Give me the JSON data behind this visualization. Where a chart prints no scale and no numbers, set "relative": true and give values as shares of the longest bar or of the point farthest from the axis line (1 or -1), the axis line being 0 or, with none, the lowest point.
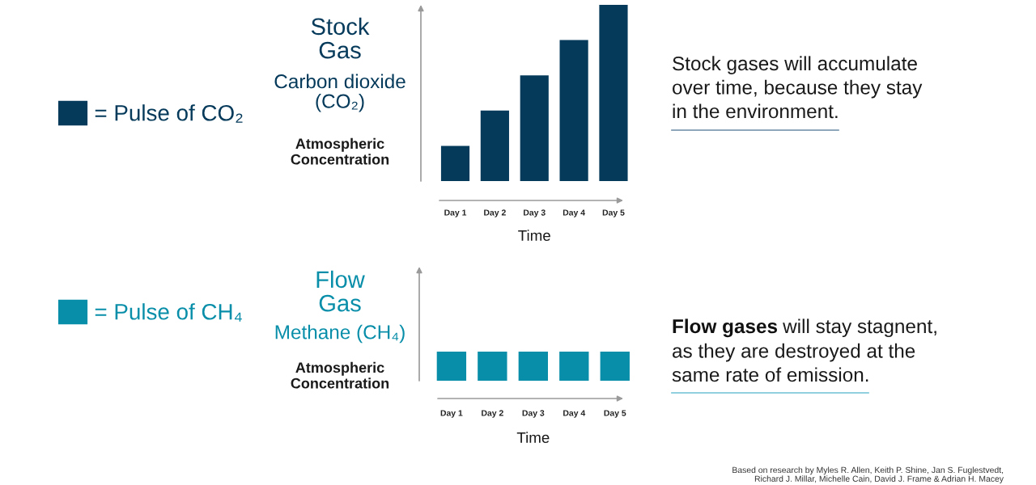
{
  "chart_data": [
    {
      "type": "bar",
      "title": "Stock\nGas",
      "subtitle": "Carbon dioxide\n(CO₂)",
      "ylabel": "Atmospheric\nConcentration",
      "xlabel": "Time",
      "categories": [
        "Day 1",
        "Day 2",
        "Day 3",
        "Day 4",
        "Day 5"
      ],
      "series": [
        {
          "name": "= Pulse of CO₂",
          "color": "#053a5b",
          "values": [
            0.2,
            0.4,
            0.6,
            0.8,
            1
          ]
        }
      ],
      "relative": true,
      "legend": "left",
      "annotations": [
        "Stock gases will accumulate\nover time, because they stay\nin the environment."
      ]
    },
    {
      "type": "bar",
      "title": "Flow\nGas",
      "subtitle": "Methane (CH₄)",
      "ylabel": "Atmospheric\nConcentration",
      "xlabel": "Time",
      "categories": [
        "Day 1",
        "Day 2",
        "Day 3",
        "Day 4",
        "Day 5"
      ],
      "series": [
        {
          "name": "= Pulse of CH₄",
          "color": "#088ea9",
          "values": [
            1,
            1,
            1,
            1,
            1
          ]
        }
      ],
      "relative": true,
      "legend": "left",
      "annotations": [
        "Flow gases",
        "will stay stagnent,",
        "as they are destroyed at the\nsame rate of emission.",
        "Based on research by Myles R. Allen, Keith P. Shine, Jan S. Fuglestvedt,\nRichard J. Millar, Michelle Cain, David J. Frame & Adrian H. Macey"
      ]
    }
  ]
}
